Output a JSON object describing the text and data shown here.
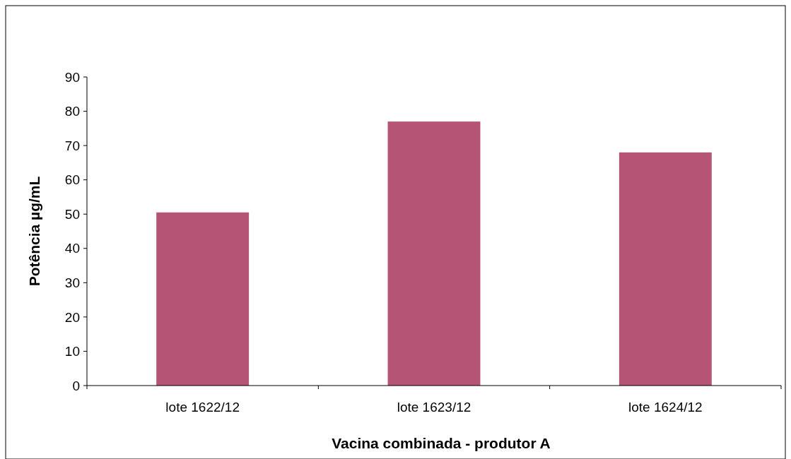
{
  "chart_data": {
    "type": "bar",
    "xlabel": "Vacina combinada - produtor A",
    "ylabel": "Potência µg/mL",
    "categories": [
      "lote 1622/12",
      "lote 1623/12",
      "lote 1624/12"
    ],
    "values": [
      50.5,
      77,
      68
    ],
    "color": "#b55474",
    "ylim": [
      0,
      90
    ],
    "yticks": [
      0,
      10,
      20,
      30,
      40,
      50,
      60,
      70,
      80,
      90
    ],
    "grid": false
  }
}
